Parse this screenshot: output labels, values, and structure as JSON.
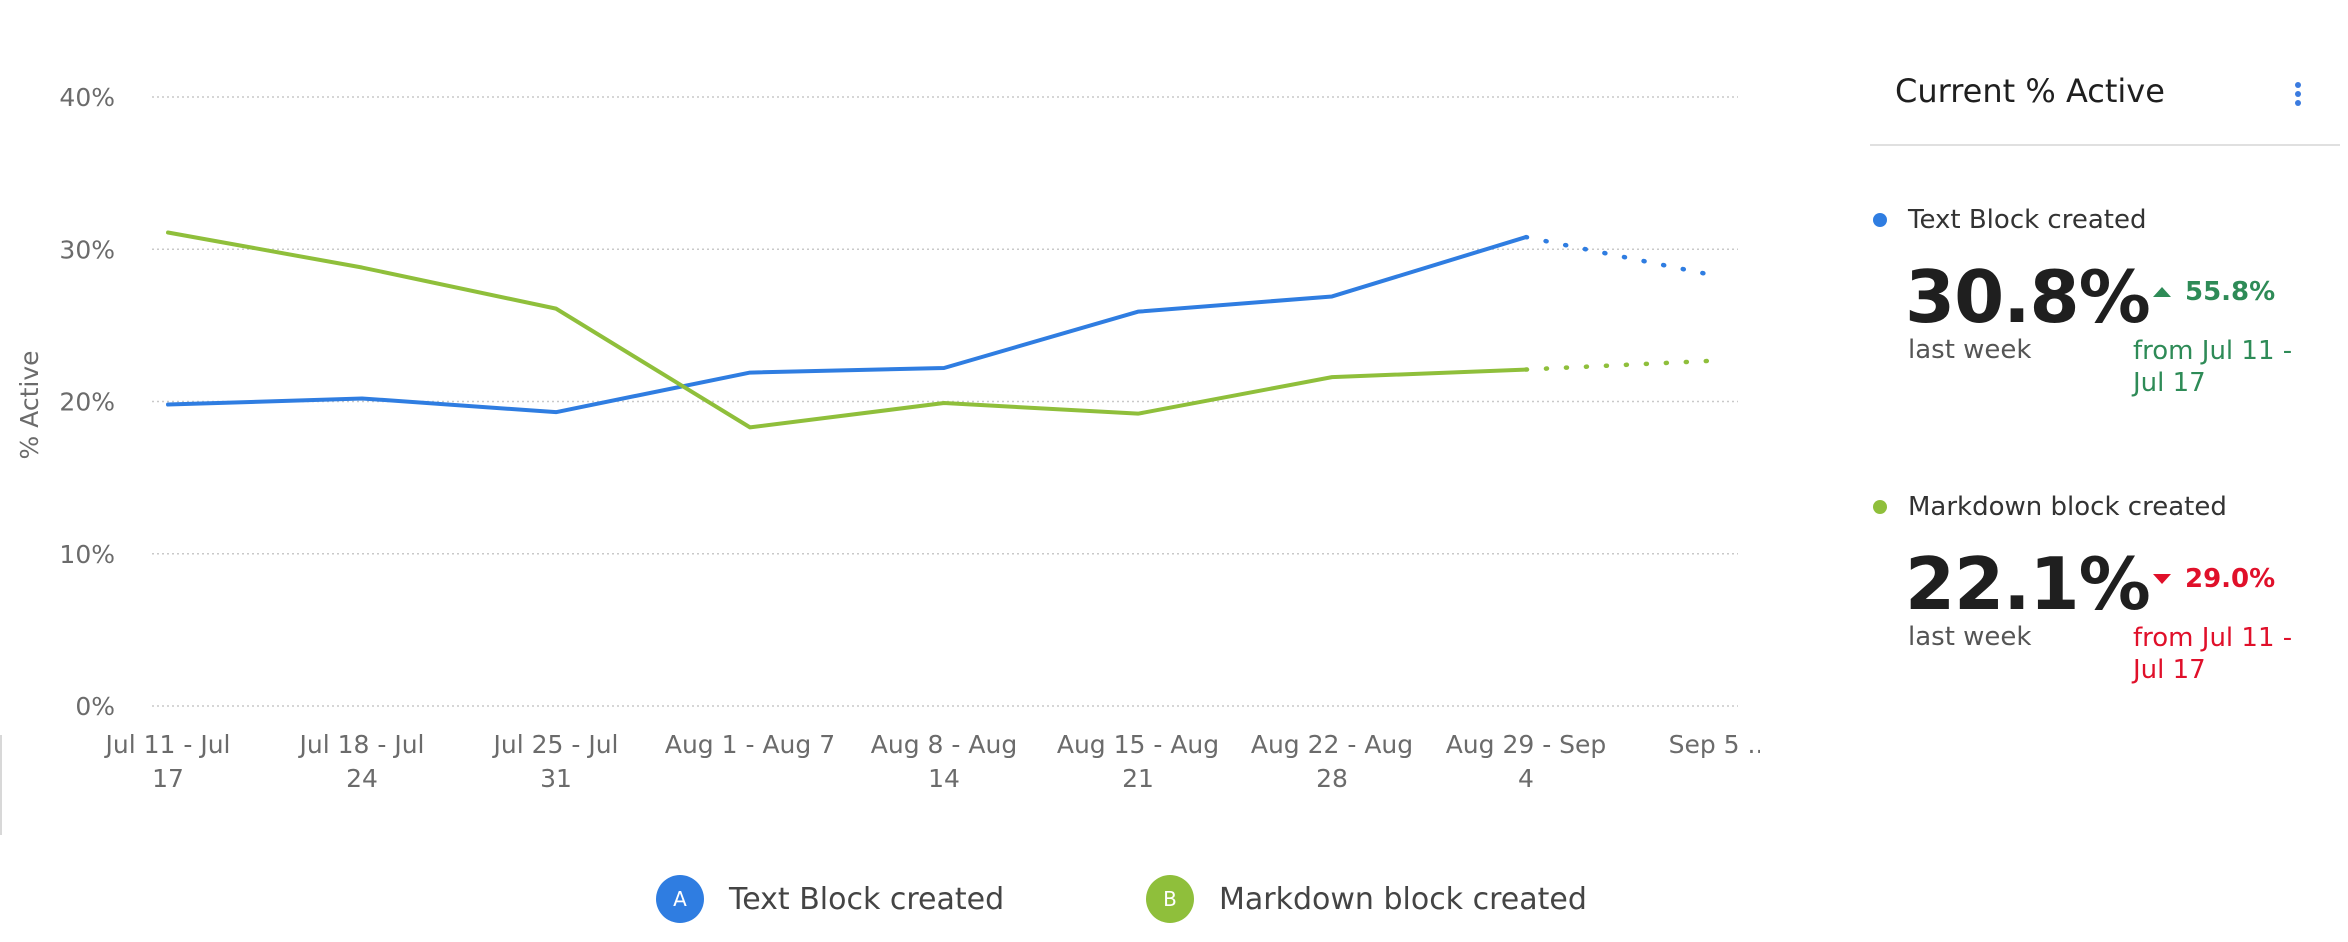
{
  "chart_data": {
    "type": "line",
    "ylabel": "% Active",
    "ylim": [
      0,
      40
    ],
    "y_ticks": [
      "0%",
      "10%",
      "20%",
      "30%",
      "40%"
    ],
    "y_tick_values": [
      0,
      10,
      20,
      30,
      40
    ],
    "categories": [
      [
        "Jul 11 - Jul",
        "17"
      ],
      [
        "Jul 18 - Jul",
        "24"
      ],
      [
        "Jul 25 - Jul",
        "31"
      ],
      [
        "Aug 1 - Aug 7"
      ],
      [
        "Aug 8 - Aug",
        "14"
      ],
      [
        "Aug 15 - Aug",
        "21"
      ],
      [
        "Aug 22 - Aug",
        "28"
      ],
      [
        "Aug 29 - Sep",
        "4"
      ],
      [
        "Sep 5 ..."
      ]
    ],
    "grid": true,
    "legend_position": "bottom",
    "series": [
      {
        "name": "Text Block created",
        "badge": "A",
        "color": "#2f7de1",
        "values": [
          19.8,
          20.2,
          19.3,
          21.9,
          22.2,
          25.9,
          26.9,
          30.8,
          28.2
        ],
        "partial_last": true
      },
      {
        "name": "Markdown block created",
        "badge": "B",
        "color": "#8fbf3b",
        "values": [
          31.1,
          28.8,
          26.1,
          18.3,
          19.9,
          19.2,
          21.6,
          22.1,
          22.7
        ],
        "partial_last": true
      }
    ]
  },
  "panel": {
    "title": "Current % Active",
    "metrics": [
      {
        "name": "Text Block created",
        "color": "#2f7de1",
        "value": "30.8%",
        "period": "last week",
        "change": "55.8%",
        "direction": "up",
        "change_color": "#2e8b57",
        "from_line1": "from Jul 11 -",
        "from_line2": "Jul 17"
      },
      {
        "name": "Markdown block created",
        "color": "#8fbf3b",
        "value": "22.1%",
        "period": "last week",
        "change": "29.0%",
        "direction": "down",
        "change_color": "#e0102a",
        "from_line1": "from Jul 11 -",
        "from_line2": "Jul 17"
      }
    ]
  }
}
